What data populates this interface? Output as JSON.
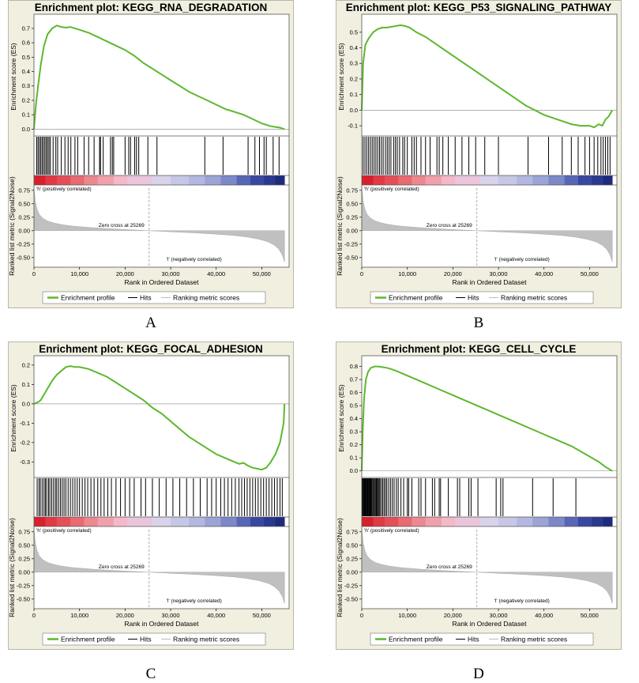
{
  "chart_data": [
    {
      "type": "line",
      "label": "A",
      "title": "Enrichment plot: KEGG_RNA_DEGRADATION",
      "ylabel": "Enrichment score (ES)",
      "ylim": [
        -0.02,
        0.76
      ],
      "yticks": [
        0.0,
        0.1,
        0.2,
        0.3,
        0.4,
        0.5,
        0.6,
        0.7
      ],
      "ytick_labels": [
        "0.0",
        "0.1",
        "0.2",
        "0.3",
        "0.4",
        "0.5",
        "0.6",
        "0.7"
      ],
      "es_curve": {
        "x": [
          0,
          400,
          900,
          1500,
          2200,
          3000,
          4000,
          5000,
          6000,
          7000,
          8000,
          9000,
          10000,
          12000,
          14000,
          16000,
          18000,
          20000,
          22000,
          24000,
          26000,
          28000,
          30000,
          32000,
          34000,
          36000,
          38000,
          40000,
          42000,
          44000,
          46000,
          48000,
          50000,
          51000,
          52000,
          53000,
          54000,
          55000
        ],
        "y": [
          0.0,
          0.16,
          0.3,
          0.45,
          0.58,
          0.66,
          0.7,
          0.72,
          0.71,
          0.705,
          0.71,
          0.7,
          0.69,
          0.67,
          0.64,
          0.61,
          0.58,
          0.55,
          0.51,
          0.46,
          0.42,
          0.38,
          0.34,
          0.3,
          0.26,
          0.23,
          0.2,
          0.17,
          0.14,
          0.12,
          0.1,
          0.07,
          0.04,
          0.03,
          0.02,
          0.015,
          0.01,
          0.0
        ]
      },
      "hits": [
        600,
        900,
        1200,
        1500,
        1800,
        2100,
        2400,
        2700,
        3000,
        3300,
        3600,
        4200,
        4800,
        5200,
        6000,
        6800,
        7500,
        8100,
        9000,
        9600,
        11000,
        12000,
        13200,
        14400,
        14600,
        15200,
        16800,
        17200,
        17500,
        20000,
        20800,
        21200,
        22100,
        22500,
        23000,
        25000,
        27000,
        37500,
        41500,
        47000,
        48500,
        49500,
        50500,
        51000,
        52500,
        53800
      ]
    },
    {
      "type": "line",
      "label": "B",
      "title": "Enrichment plot: KEGG_P53_SIGNALING_PATHWAY",
      "ylabel": "Enrichment score (ES)",
      "ylim": [
        -0.14,
        0.58
      ],
      "yticks": [
        -0.1,
        0.0,
        0.1,
        0.2,
        0.3,
        0.4,
        0.5
      ],
      "ytick_labels": [
        "-0.1",
        "0.0",
        "0.1",
        "0.2",
        "0.3",
        "0.4",
        "0.5"
      ],
      "es_curve": {
        "x": [
          0,
          300,
          800,
          1500,
          2500,
          3500,
          4500,
          5500,
          6500,
          7500,
          8500,
          9500,
          10500,
          12000,
          14000,
          16000,
          18000,
          20000,
          22000,
          24000,
          26000,
          28000,
          30000,
          32000,
          34000,
          36000,
          38000,
          40000,
          42000,
          44000,
          46000,
          48000,
          50000,
          51000,
          52000,
          52800,
          53500,
          54200,
          55000
        ],
        "y": [
          0.0,
          0.3,
          0.42,
          0.46,
          0.5,
          0.52,
          0.53,
          0.53,
          0.535,
          0.54,
          0.545,
          0.54,
          0.53,
          0.5,
          0.47,
          0.43,
          0.39,
          0.35,
          0.31,
          0.27,
          0.23,
          0.19,
          0.15,
          0.11,
          0.07,
          0.03,
          0.0,
          -0.03,
          -0.05,
          -0.07,
          -0.09,
          -0.1,
          -0.1,
          -0.11,
          -0.09,
          -0.1,
          -0.06,
          -0.04,
          0.0
        ]
      },
      "hits": [
        300,
        700,
        1100,
        1500,
        1900,
        2300,
        2700,
        3100,
        3500,
        3900,
        4300,
        4700,
        5200,
        5600,
        6000,
        6400,
        7000,
        7400,
        7800,
        8300,
        9000,
        9400,
        10000,
        11000,
        11500,
        12000,
        13000,
        14000,
        15000,
        16500,
        17000,
        17800,
        19000,
        20500,
        22000,
        23500,
        25000,
        27000,
        30000,
        36500,
        41000,
        44000,
        46000,
        47500,
        49000,
        50000,
        51000,
        51800,
        52500,
        53000,
        53500,
        54000,
        54500
      ]
    },
    {
      "type": "line",
      "label": "C",
      "title": "Enrichment plot: KEGG_FOCAL_ADHESION",
      "ylabel": "Enrichment score (ES)",
      "ylim": [
        -0.36,
        0.22
      ],
      "yticks": [
        -0.3,
        -0.2,
        -0.1,
        0.0,
        0.1,
        0.2
      ],
      "ytick_labels": [
        "-0.3",
        "-0.2",
        "-0.1",
        "0.0",
        "0.1",
        "0.2"
      ],
      "es_curve": {
        "x": [
          0,
          500,
          1000,
          1500,
          2000,
          3000,
          4000,
          5000,
          6000,
          7000,
          8000,
          9000,
          10000,
          12000,
          14000,
          16000,
          18000,
          20000,
          22000,
          24000,
          26000,
          28000,
          30000,
          32000,
          34000,
          36000,
          38000,
          40000,
          42000,
          44000,
          45000,
          46000,
          47000,
          48000,
          49000,
          50000,
          51000,
          52000,
          53000,
          54000,
          54800,
          55000
        ],
        "y": [
          0.0,
          0.005,
          0.01,
          0.02,
          0.04,
          0.08,
          0.12,
          0.15,
          0.17,
          0.19,
          0.195,
          0.19,
          0.19,
          0.18,
          0.16,
          0.14,
          0.11,
          0.08,
          0.05,
          0.02,
          -0.02,
          -0.05,
          -0.09,
          -0.13,
          -0.17,
          -0.2,
          -0.23,
          -0.26,
          -0.28,
          -0.3,
          -0.31,
          -0.305,
          -0.32,
          -0.33,
          -0.335,
          -0.34,
          -0.33,
          -0.3,
          -0.26,
          -0.2,
          -0.1,
          0.0
        ]
      },
      "hits": [
        700,
        1100,
        1400,
        1800,
        2200,
        2500,
        2800,
        3200,
        3500,
        3900,
        4300,
        4700,
        5000,
        5400,
        5800,
        6200,
        6600,
        7000,
        7500,
        8000,
        8500,
        9000,
        9500,
        10000,
        10600,
        11200,
        11800,
        12500,
        13200,
        14000,
        14700,
        15400,
        16200,
        17000,
        18000,
        19000,
        20000,
        21000,
        22000,
        23500,
        24500,
        26000,
        27500,
        29000,
        30500,
        32000,
        33500,
        35000,
        36500,
        38000,
        39000,
        40000,
        41000,
        41800,
        42600,
        43400,
        44200,
        45000,
        45600,
        46200,
        46800,
        47400,
        48000,
        48600,
        49200,
        49800,
        50400,
        51000,
        51600,
        52200,
        52800,
        53400,
        54000,
        54500
      ]
    },
    {
      "type": "line",
      "label": "D",
      "title": "Enrichment plot: KEGG_CELL_CYCLE",
      "ylabel": "Enrichment score (ES)",
      "ylim": [
        -0.02,
        0.84
      ],
      "yticks": [
        0.0,
        0.1,
        0.2,
        0.3,
        0.4,
        0.5,
        0.6,
        0.7,
        0.8
      ],
      "ytick_labels": [
        "0.0",
        "0.1",
        "0.2",
        "0.3",
        "0.4",
        "0.5",
        "0.6",
        "0.7",
        "0.8"
      ],
      "es_curve": {
        "x": [
          0,
          200,
          500,
          900,
          1400,
          2000,
          2800,
          3600,
          4500,
          5500,
          6500,
          8000,
          10000,
          12000,
          14000,
          16000,
          18000,
          20000,
          22000,
          24000,
          26000,
          28000,
          30000,
          32000,
          34000,
          36000,
          38000,
          40000,
          42000,
          44000,
          46000,
          48000,
          50000,
          52000,
          53500,
          55000
        ],
        "y": [
          0.0,
          0.3,
          0.55,
          0.7,
          0.76,
          0.79,
          0.8,
          0.8,
          0.795,
          0.79,
          0.78,
          0.76,
          0.73,
          0.7,
          0.67,
          0.64,
          0.61,
          0.58,
          0.55,
          0.52,
          0.49,
          0.46,
          0.43,
          0.4,
          0.37,
          0.34,
          0.31,
          0.28,
          0.25,
          0.22,
          0.19,
          0.15,
          0.11,
          0.07,
          0.03,
          0.0
        ]
      },
      "hits": [
        100,
        250,
        400,
        550,
        700,
        850,
        1000,
        1150,
        1300,
        1450,
        1600,
        1750,
        1900,
        2050,
        2200,
        2400,
        2600,
        2800,
        3000,
        3200,
        3400,
        3600,
        3800,
        4000,
        4300,
        4600,
        4900,
        5200,
        5500,
        5900,
        6300,
        6700,
        7100,
        7600,
        8000,
        8600,
        9200,
        10000,
        10300,
        11000,
        12500,
        13000,
        14000,
        15500,
        16000,
        17000,
        17300,
        19000,
        21000,
        21500,
        23500,
        24000,
        25500,
        29500,
        30500,
        31000,
        37500,
        42000,
        47000
      ]
    }
  ],
  "shared": {
    "metric_ylabel": "Ranked list metric (Signal2Noise)",
    "metric_yticks": [
      -0.5,
      -0.25,
      0.0,
      0.25,
      0.5,
      0.75
    ],
    "metric_ytick_labels": [
      "-0.50",
      "-0.25",
      "0.00",
      "0.25",
      "0.50",
      "0.75"
    ],
    "metric_ylim": [
      -0.62,
      0.82
    ],
    "metric_curve": {
      "x": [
        0,
        300,
        700,
        1200,
        2000,
        3000,
        4500,
        6000,
        8000,
        10000,
        13000,
        16000,
        20000,
        25269,
        30000,
        35000,
        40000,
        44000,
        47000,
        49500,
        51500,
        52800,
        53800,
        54500,
        55000
      ],
      "y": [
        0.8,
        0.55,
        0.4,
        0.3,
        0.23,
        0.18,
        0.14,
        0.115,
        0.09,
        0.075,
        0.055,
        0.04,
        0.02,
        0.0,
        -0.02,
        -0.04,
        -0.065,
        -0.09,
        -0.12,
        -0.16,
        -0.21,
        -0.27,
        -0.35,
        -0.45,
        -0.58
      ]
    },
    "xlabel": "Rank in Ordered Dataset",
    "xlim": [
      0,
      56000
    ],
    "xticks": [
      0,
      10000,
      20000,
      30000,
      40000,
      50000
    ],
    "xtick_labels": [
      "0",
      "10,000",
      "20,000",
      "30,000",
      "40,000",
      "50,000"
    ],
    "zero_cross_rank": 25269,
    "zero_cross_text": "Zero cross at 25269",
    "pos_label": "'h' (positively correlated)",
    "neg_label": "'l' (negatively correlated)",
    "legend": [
      "Enrichment profile",
      "Hits",
      "Ranking metric scores"
    ],
    "colors": {
      "es_line": "#5cb82e",
      "hits": "#000000",
      "metric_fill": "#c0c0c0",
      "frame_bg": "#f1efe0",
      "pos_text": "#c8323c",
      "neg_text": "#2d3c8c"
    },
    "heatmap_colors": [
      "#d8202c",
      "#e03a44",
      "#e44e58",
      "#e86a72",
      "#ec8890",
      "#f0a0ac",
      "#f4b8c8",
      "#eac6dc",
      "#d8d2ea",
      "#c6c6e6",
      "#b4b8e0",
      "#9ca4d6",
      "#7c88c8",
      "#5866b6",
      "#3848a2",
      "#2a3890",
      "#1e2a7c"
    ],
    "heatmap_bounds": [
      0,
      2500,
      5000,
      8000,
      11000,
      14000,
      17500,
      20500,
      26000,
      30000,
      34000,
      37500,
      41000,
      44500,
      47500,
      50500,
      53000,
      55000
    ]
  }
}
